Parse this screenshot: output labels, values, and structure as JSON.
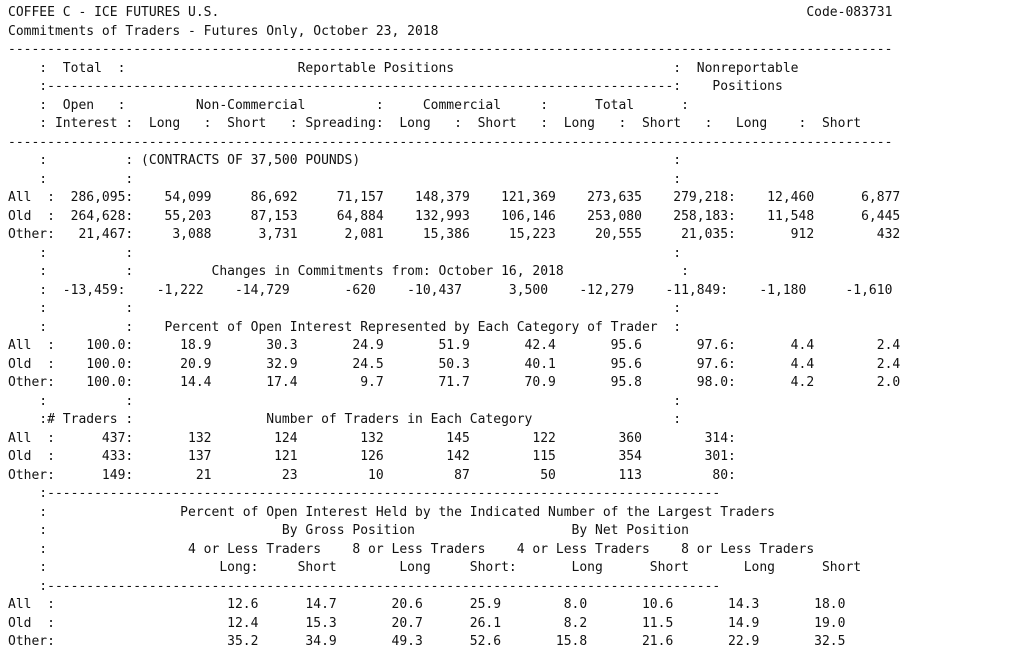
{
  "report": {
    "title": "COFFEE C - ICE FUTURES U.S.",
    "code": "Code-083731",
    "subtitle": "Commitments of Traders - Futures Only, October 23, 2018",
    "lines": [
      "COFFEE C - ICE FUTURES U.S.                                                                           Code-083731",
      "Commitments of Traders - Futures Only, October 23, 2018",
      "-----------------------------------------------------------------------------------------------------------------",
      "    :  Total  :                      Reportable Positions                            :  Nonreportable",
      "    :--------------------------------------------------------------------------------:    Positions",
      "    :  Open   :         Non-Commercial         :     Commercial     :      Total      :",
      "    : Interest :  Long   :  Short   : Spreading:  Long   :  Short   :  Long   :  Short   :   Long    :  Short",
      "-----------------------------------------------------------------------------------------------------------------",
      "    :          : (CONTRACTS OF 37,500 POUNDS)                                        :",
      "    :          :                                                                     :",
      "All  :  286,095:    54,099     86,692     71,157    148,379    121,369    273,635    279,218:    12,460      6,877",
      "Old  :  264,628:    55,203     87,153     64,884    132,993    106,146    253,080    258,183:    11,548      6,445",
      "Other:   21,467:     3,088      3,731      2,081     15,386     15,223     20,555     21,035:       912        432",
      "    :          :                                                                     :",
      "    :          :          Changes in Commitments from: October 16, 2018               :",
      "    :  -13,459:    -1,222    -14,729       -620    -10,437      3,500    -12,279    -11,849:    -1,180     -1,610",
      "    :          :                                                                     :",
      "    :          :    Percent of Open Interest Represented by Each Category of Trader  :",
      "All  :    100.0:      18.9       30.3       24.9       51.9       42.4       95.6       97.6:       4.4        2.4",
      "Old  :    100.0:      20.9       32.9       24.5       50.3       40.1       95.6       97.6:       4.4        2.4",
      "Other:    100.0:      14.4       17.4        9.7       71.7       70.9       95.8       98.0:       4.2        2.0",
      "    :          :                                                                     :",
      "    :# Traders :                 Number of Traders in Each Category                  :",
      "All  :      437:       132        124        132        145        122        360        314:",
      "Old  :      433:       137        121        126        142        115        354        301:",
      "Other:      149:        21         23         10         87         50        113         80:",
      "    :--------------------------------------------------------------------------------------",
      "    :                 Percent of Open Interest Held by the Indicated Number of the Largest Traders",
      "    :                              By Gross Position                    By Net Position",
      "    :                  4 or Less Traders    8 or Less Traders    4 or Less Traders    8 or Less Traders",
      "    :                      Long:     Short        Long     Short:       Long      Short       Long      Short",
      "    :--------------------------------------------------------------------------------------",
      "All  :                      12.6      14.7       20.6      25.9        8.0       10.6       14.3       18.0",
      "Old  :                      12.4      15.3       20.7      26.1        8.2       11.5       14.9       19.0",
      "Other:                      35.2      34.9       49.3      52.6       15.8       21.6       22.9       32.5"
    ]
  }
}
